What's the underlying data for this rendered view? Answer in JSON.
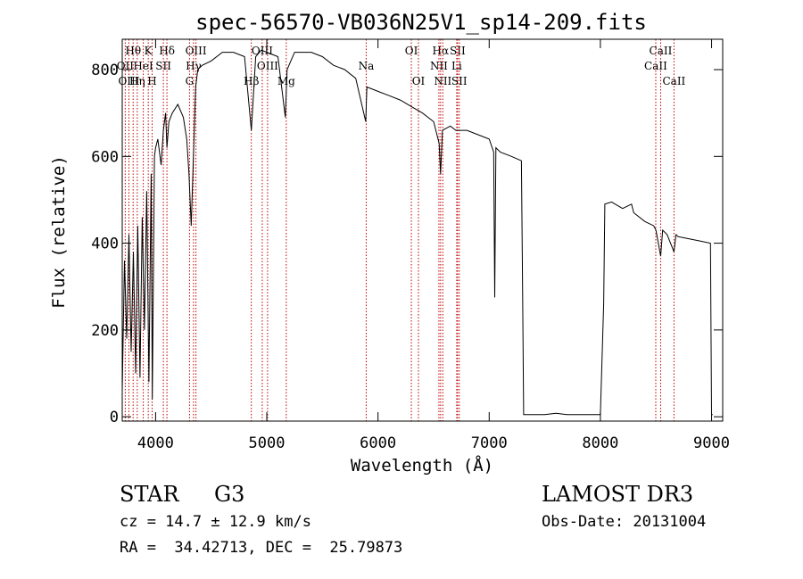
{
  "chart_data": {
    "type": "line",
    "title": "spec-56570-VB036N25V1_sp14-209.fits",
    "xlabel": "Wavelength (Å)",
    "ylabel": "Flux (relative)",
    "xlim": [
      3700,
      9100
    ],
    "ylim": [
      -10,
      870
    ],
    "xticks": [
      4000,
      5000,
      6000,
      7000,
      8000,
      9000
    ],
    "yticks": [
      0,
      200,
      400,
      600,
      800
    ],
    "series": [
      {
        "name": "flux",
        "x": [
          3700,
          3720,
          3740,
          3760,
          3780,
          3800,
          3820,
          3840,
          3860,
          3880,
          3900,
          3920,
          3940,
          3960,
          3970,
          3990,
          4000,
          4020,
          4050,
          4070,
          4090,
          4102,
          4120,
          4150,
          4200,
          4250,
          4280,
          4300,
          4320,
          4340,
          4360,
          4380,
          4420,
          4500,
          4600,
          4700,
          4800,
          4861,
          4900,
          4950,
          5000,
          5100,
          5167,
          5183,
          5250,
          5300,
          5400,
          5500,
          5600,
          5700,
          5800,
          5890,
          5900,
          6000,
          6100,
          6200,
          6300,
          6400,
          6500,
          6550,
          6563,
          6580,
          6650,
          6700,
          6800,
          6900,
          7000,
          7040,
          7050,
          7060,
          7100,
          7200,
          7290,
          7300,
          7310,
          7400,
          7500,
          7600,
          7700,
          7800,
          7900,
          8000,
          8030,
          8040,
          8100,
          8200,
          8280,
          8300,
          8400,
          8480,
          8500,
          8542,
          8560,
          8600,
          8662,
          8680,
          8700,
          8800,
          8900,
          8990,
          9000,
          9010
        ],
        "y": [
          60,
          360,
          180,
          420,
          150,
          380,
          100,
          440,
          90,
          460,
          200,
          520,
          80,
          560,
          40,
          600,
          620,
          640,
          580,
          660,
          700,
          620,
          680,
          700,
          720,
          690,
          640,
          560,
          440,
          600,
          760,
          800,
          810,
          820,
          840,
          840,
          830,
          660,
          830,
          845,
          840,
          830,
          690,
          800,
          840,
          840,
          840,
          830,
          810,
          800,
          780,
          680,
          760,
          750,
          740,
          730,
          715,
          700,
          680,
          630,
          560,
          660,
          670,
          660,
          660,
          650,
          640,
          610,
          275,
          620,
          610,
          600,
          590,
          300,
          5,
          5,
          5,
          8,
          5,
          5,
          5,
          5,
          260,
          490,
          495,
          480,
          490,
          470,
          450,
          440,
          430,
          370,
          430,
          420,
          380,
          420,
          415,
          410,
          405,
          400,
          5,
          5
        ]
      }
    ],
    "emission_lines": [
      {
        "label": "Hθ",
        "wavelength": 3798,
        "row": 1
      },
      {
        "label": "OII",
        "wavelength": 3727,
        "row": 2
      },
      {
        "label": "OIII",
        "wavelength": 3760,
        "row": 3
      },
      {
        "label": "K",
        "wavelength": 3934,
        "row": 1
      },
      {
        "label": "Hη",
        "wavelength": 3835,
        "row": 3
      },
      {
        "label": "HeI",
        "wavelength": 3889,
        "row": 2
      },
      {
        "label": "SII",
        "wavelength": 4070,
        "row": 2
      },
      {
        "label": "H",
        "wavelength": 3969,
        "row": 3
      },
      {
        "label": "Hδ",
        "wavelength": 4102,
        "row": 1
      },
      {
        "label": "OIII",
        "wavelength": 4363,
        "row": 1
      },
      {
        "label": "Hγ",
        "wavelength": 4341,
        "row": 2
      },
      {
        "label": "G",
        "wavelength": 4305,
        "row": 3
      },
      {
        "label": "OIII",
        "wavelength": 4959,
        "row": 1
      },
      {
        "label": "Hβ",
        "wavelength": 4861,
        "row": 3
      },
      {
        "label": "OIII",
        "wavelength": 5007,
        "row": 2
      },
      {
        "label": "Mg",
        "wavelength": 5175,
        "row": 3
      },
      {
        "label": "Na",
        "wavelength": 5894,
        "row": 2
      },
      {
        "label": "OI",
        "wavelength": 6300,
        "row": 1
      },
      {
        "label": "OI",
        "wavelength": 6364,
        "row": 3
      },
      {
        "label": "Hα",
        "wavelength": 6563,
        "row": 1
      },
      {
        "label": "NII",
        "wavelength": 6548,
        "row": 2
      },
      {
        "label": "NII",
        "wavelength": 6583,
        "row": 3
      },
      {
        "label": "SII",
        "wavelength": 6716,
        "row": 1
      },
      {
        "label": "Li",
        "wavelength": 6708,
        "row": 2
      },
      {
        "label": "SII",
        "wavelength": 6731,
        "row": 3
      },
      {
        "label": "CaII",
        "wavelength": 8542,
        "row": 1
      },
      {
        "label": "CaII",
        "wavelength": 8498,
        "row": 2
      },
      {
        "label": "CaII",
        "wavelength": 8662,
        "row": 3
      }
    ]
  },
  "info": {
    "object_class": "STAR",
    "subclass": "G3",
    "survey": "LAMOST DR3",
    "redshift": "cz = 14.7 ± 12.9 km/s",
    "obs_date": "Obs-Date: 20131004",
    "coords": "RA =  34.42713, DEC =  25.79873"
  },
  "colors": {
    "line_marker": "#c00000",
    "spectrum": "#000000"
  }
}
